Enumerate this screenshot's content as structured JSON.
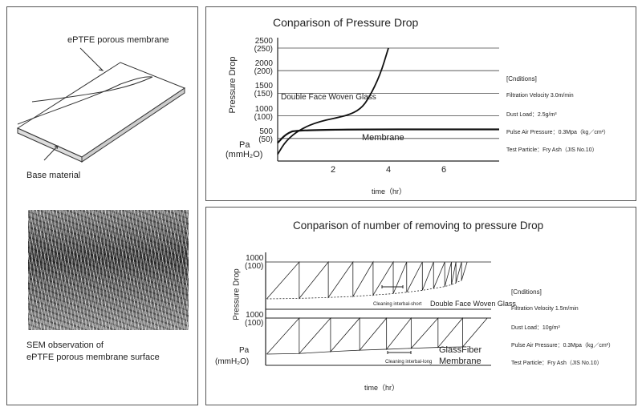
{
  "left_panel": {
    "membrane_label": "ePTFE  porous  membrane",
    "base_label": "Base  material",
    "sem_caption_line1": "SEM  observation  of",
    "sem_caption_line2": "ePTFE  porous  membrane  surface"
  },
  "chart_data": [
    {
      "type": "line",
      "title": "Conparison of Pressure Drop",
      "xlabel": "time（hr）",
      "ylabel": "Pressure   Drop",
      "yunit": "Pa",
      "yunit2": "(mmH₂O)",
      "xlim": [
        0,
        8
      ],
      "ylim": [
        0,
        2500
      ],
      "xticks": [
        "2",
        "4",
        "6"
      ],
      "yticks": [
        {
          "v": "2500",
          "s": "(250)"
        },
        {
          "v": "2000",
          "s": "(200)"
        },
        {
          "v": "1500",
          "s": "(150)"
        },
        {
          "v": "1000",
          "s": "(100)"
        },
        {
          "v": "500",
          "s": "(50)"
        }
      ],
      "series": [
        {
          "name": "Double Face Woven  Glass",
          "points": [
            [
              0,
              150
            ],
            [
              0.3,
              450
            ],
            [
              0.8,
              700
            ],
            [
              1.5,
              880
            ],
            [
              2.5,
              1000
            ],
            [
              3,
              1150
            ],
            [
              3.3,
              1400
            ],
            [
              3.7,
              1900
            ],
            [
              4,
              2500
            ]
          ]
        },
        {
          "name": "Membrane",
          "points": [
            [
              0,
              400
            ],
            [
              0.3,
              600
            ],
            [
              0.7,
              700
            ],
            [
              8,
              700
            ]
          ]
        }
      ],
      "conditions": {
        "heading": "[Cnditions]",
        "items": [
          "Filtration Velocity 3.0m/min",
          "Dust Load：2.5g/m³",
          "Pulse Air Pressure：0.3Mpa（kg／cm²）",
          "Test Particle：Fry Ash（JIS No.10）"
        ]
      }
    },
    {
      "type": "line",
      "title": "Conparison of number of removing to pressure Drop",
      "xlabel": "time（hr）",
      "ylabel": "Pressure   Drop",
      "yunit": "Pa",
      "yunit2": "(mmH₂O)",
      "xlim": [
        0,
        10
      ],
      "ylim": [
        0,
        1000
      ],
      "yticks": [
        {
          "v": "1000",
          "s": "(100)"
        }
      ],
      "series": [
        {
          "name": "Double Face Woven Glass",
          "annotation": "Cleaning interbal-short",
          "cleaning_times": [
            1.5,
            2.8,
            3.9,
            4.8,
            5.7,
            6.3,
            7.0,
            7.5,
            8.0,
            8.3,
            8.5,
            8.75,
            9.0
          ],
          "troughs": [
            220,
            230,
            250,
            270,
            300,
            330,
            360,
            400,
            440,
            480,
            520,
            560,
            610
          ]
        },
        {
          "name": "GlassFiber Membrane",
          "label1": "GlassFiber",
          "label2": "Membrane",
          "annotation": "Cleaning interbal-long",
          "cleaning_times": [
            1.5,
            2.9,
            4.2,
            5.4,
            6.5,
            7.7,
            8.8,
            9.9
          ],
          "troughs": [
            237,
            250,
            290,
            320,
            340,
            360,
            380,
            390
          ]
        }
      ],
      "conditions": {
        "heading": "[Cnditions]",
        "items": [
          "Filtration Velocity 1.5m/min",
          "Dust Load：10g/m³",
          "Pulse Air Pressure：0.3Mpa（kg／cm²）",
          "Test Particle：Fry Ash（JIS No.10）"
        ]
      }
    }
  ]
}
